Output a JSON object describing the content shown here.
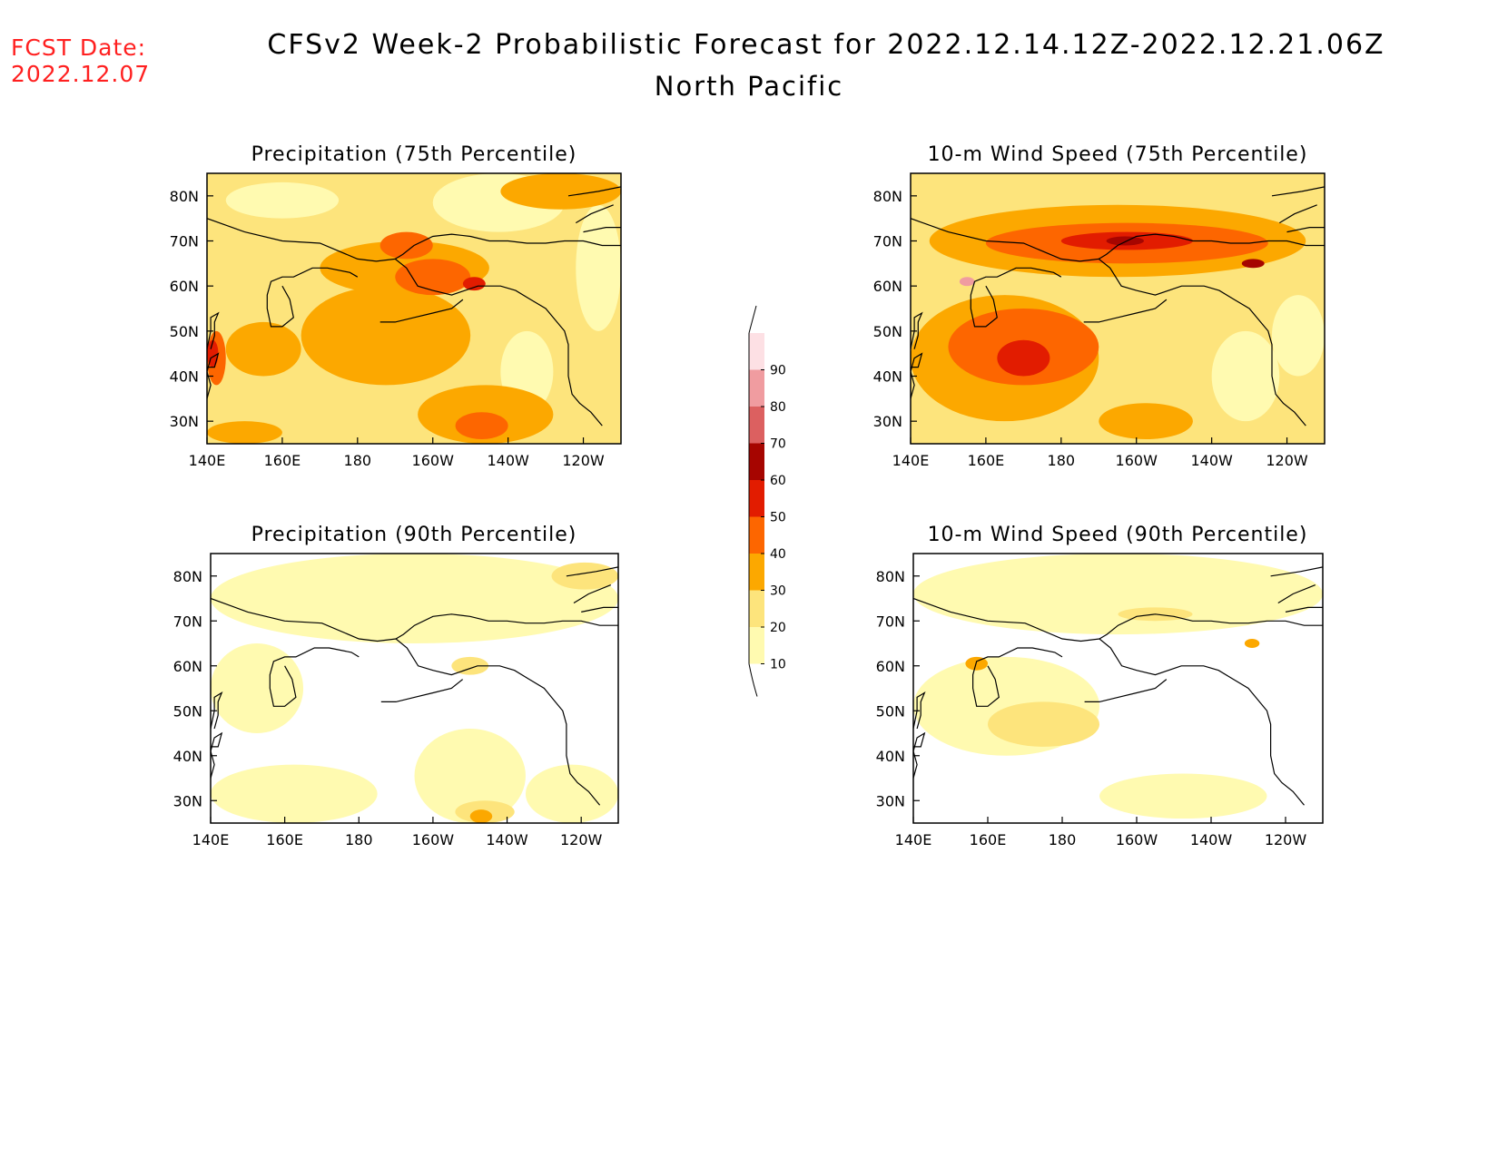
{
  "header": {
    "fcst_label": "FCST Date:",
    "fcst_date": "2022.12.07",
    "title": "CFSv2 Week-2 Probabilistic Forecast for 2022.12.14.12Z-2022.12.21.06Z",
    "subtitle": "North Pacific"
  },
  "axes": {
    "lon_ticks": [
      "140E",
      "160E",
      "180",
      "160W",
      "140W",
      "120W"
    ],
    "lat_ticks": [
      "80N",
      "70N",
      "60N",
      "50N",
      "40N",
      "30N"
    ]
  },
  "colorbar": {
    "levels": [
      "10",
      "20",
      "30",
      "40",
      "50",
      "60",
      "70",
      "80",
      "90"
    ],
    "colors": [
      "#fffab0",
      "#fde47c",
      "#fca800",
      "#fd6600",
      "#e21c00",
      "#a60500",
      "#dc6060",
      "#f09ca0",
      "#fde0e4"
    ]
  },
  "chart_data": [
    {
      "type": "heatmap",
      "title": "Precipitation (75th Percentile)",
      "xlim": [
        "140E",
        "110W"
      ],
      "ylim": [
        "25N",
        "85N"
      ],
      "levels": [
        10,
        20,
        30,
        40,
        50,
        60,
        70,
        80,
        90
      ],
      "background_level": 20,
      "regions": [
        {
          "level": 10,
          "lon": [
            145,
            175
          ],
          "lat": [
            75,
            83
          ]
        },
        {
          "level": 10,
          "lon": [
            200,
            235
          ],
          "lat": [
            72,
            85
          ]
        },
        {
          "level": 10,
          "lon": [
            218,
            232
          ],
          "lat": [
            32,
            50
          ]
        },
        {
          "level": 10,
          "lon": [
            238,
            250
          ],
          "lat": [
            50,
            78
          ]
        },
        {
          "level": 30,
          "lon": [
            165,
            210
          ],
          "lat": [
            38,
            60
          ]
        },
        {
          "level": 30,
          "lon": [
            145,
            165
          ],
          "lat": [
            40,
            52
          ]
        },
        {
          "level": 30,
          "lon": [
            218,
            250
          ],
          "lat": [
            77,
            85
          ]
        },
        {
          "level": 30,
          "lon": [
            196,
            232
          ],
          "lat": [
            25,
            38
          ]
        },
        {
          "level": 30,
          "lon": [
            140,
            160
          ],
          "lat": [
            25,
            30
          ]
        },
        {
          "level": 30,
          "lon": [
            170,
            215
          ],
          "lat": [
            58,
            70
          ]
        },
        {
          "level": 40,
          "lon": [
            190,
            210
          ],
          "lat": [
            58,
            66
          ]
        },
        {
          "level": 40,
          "lon": [
            206,
            220
          ],
          "lat": [
            26,
            32
          ]
        },
        {
          "level": 40,
          "lon": [
            186,
            200
          ],
          "lat": [
            66,
            72
          ]
        },
        {
          "level": 40,
          "lon": [
            140,
            145
          ],
          "lat": [
            38,
            50
          ]
        },
        {
          "level": 50,
          "lon": [
            208,
            214
          ],
          "lat": [
            59,
            62
          ]
        },
        {
          "level": 50,
          "lon": [
            140,
            143
          ],
          "lat": [
            42,
            48
          ]
        }
      ]
    },
    {
      "type": "heatmap",
      "title": "10-m Wind Speed (75th Percentile)",
      "xlim": [
        "140E",
        "110W"
      ],
      "ylim": [
        "25N",
        "85N"
      ],
      "levels": [
        10,
        20,
        30,
        40,
        50,
        60,
        70,
        80,
        90
      ],
      "background_level": 20,
      "regions": [
        {
          "level": 10,
          "lon": [
            220,
            238
          ],
          "lat": [
            30,
            50
          ]
        },
        {
          "level": 10,
          "lon": [
            236,
            250
          ],
          "lat": [
            40,
            58
          ]
        },
        {
          "level": 30,
          "lon": [
            140,
            190
          ],
          "lat": [
            30,
            58
          ]
        },
        {
          "level": 30,
          "lon": [
            145,
            245
          ],
          "lat": [
            62,
            78
          ]
        },
        {
          "level": 30,
          "lon": [
            190,
            215
          ],
          "lat": [
            26,
            34
          ]
        },
        {
          "level": 40,
          "lon": [
            150,
            190
          ],
          "lat": [
            38,
            55
          ]
        },
        {
          "level": 40,
          "lon": [
            160,
            235
          ],
          "lat": [
            65,
            74
          ]
        },
        {
          "level": 50,
          "lon": [
            163,
            177
          ],
          "lat": [
            40,
            48
          ]
        },
        {
          "level": 50,
          "lon": [
            180,
            215
          ],
          "lat": [
            68,
            72
          ]
        },
        {
          "level": 60,
          "lon": [
            192,
            202
          ],
          "lat": [
            69,
            71
          ]
        },
        {
          "level": 60,
          "lon": [
            228,
            234
          ],
          "lat": [
            64,
            66
          ]
        },
        {
          "level": 80,
          "lon": [
            153,
            157
          ],
          "lat": [
            60,
            62
          ]
        }
      ]
    },
    {
      "type": "heatmap",
      "title": "Precipitation (90th Percentile)",
      "xlim": [
        "140E",
        "110W"
      ],
      "ylim": [
        "25N",
        "85N"
      ],
      "levels": [
        10,
        20,
        30,
        40,
        50,
        60,
        70,
        80,
        90
      ],
      "background_level": 0,
      "regions": [
        {
          "level": 10,
          "lon": [
            140,
            250
          ],
          "lat": [
            65,
            85
          ]
        },
        {
          "level": 10,
          "lon": [
            140,
            165
          ],
          "lat": [
            45,
            65
          ]
        },
        {
          "level": 10,
          "lon": [
            140,
            185
          ],
          "lat": [
            25,
            38
          ]
        },
        {
          "level": 10,
          "lon": [
            195,
            225
          ],
          "lat": [
            25,
            46
          ]
        },
        {
          "level": 10,
          "lon": [
            225,
            250
          ],
          "lat": [
            25,
            38
          ]
        },
        {
          "level": 20,
          "lon": [
            206,
            222
          ],
          "lat": [
            25,
            30
          ]
        },
        {
          "level": 20,
          "lon": [
            205,
            215
          ],
          "lat": [
            58,
            62
          ]
        },
        {
          "level": 20,
          "lon": [
            232,
            250
          ],
          "lat": [
            77,
            83
          ]
        },
        {
          "level": 30,
          "lon": [
            210,
            216
          ],
          "lat": [
            25,
            28
          ]
        }
      ]
    },
    {
      "type": "heatmap",
      "title": "10-m Wind Speed (90th Percentile)",
      "xlim": [
        "140E",
        "110W"
      ],
      "ylim": [
        "25N",
        "85N"
      ],
      "levels": [
        10,
        20,
        30,
        40,
        50,
        60,
        70,
        80,
        90
      ],
      "background_level": 0,
      "regions": [
        {
          "level": 10,
          "lon": [
            140,
            250
          ],
          "lat": [
            67,
            85
          ]
        },
        {
          "level": 10,
          "lon": [
            140,
            190
          ],
          "lat": [
            40,
            62
          ]
        },
        {
          "level": 10,
          "lon": [
            190,
            235
          ],
          "lat": [
            26,
            36
          ]
        },
        {
          "level": 20,
          "lon": [
            160,
            190
          ],
          "lat": [
            42,
            52
          ]
        },
        {
          "level": 20,
          "lon": [
            195,
            215
          ],
          "lat": [
            70,
            73
          ]
        },
        {
          "level": 30,
          "lon": [
            154,
            160
          ],
          "lat": [
            59,
            62
          ]
        },
        {
          "level": 30,
          "lon": [
            229,
            233
          ],
          "lat": [
            64,
            66
          ]
        }
      ]
    }
  ]
}
